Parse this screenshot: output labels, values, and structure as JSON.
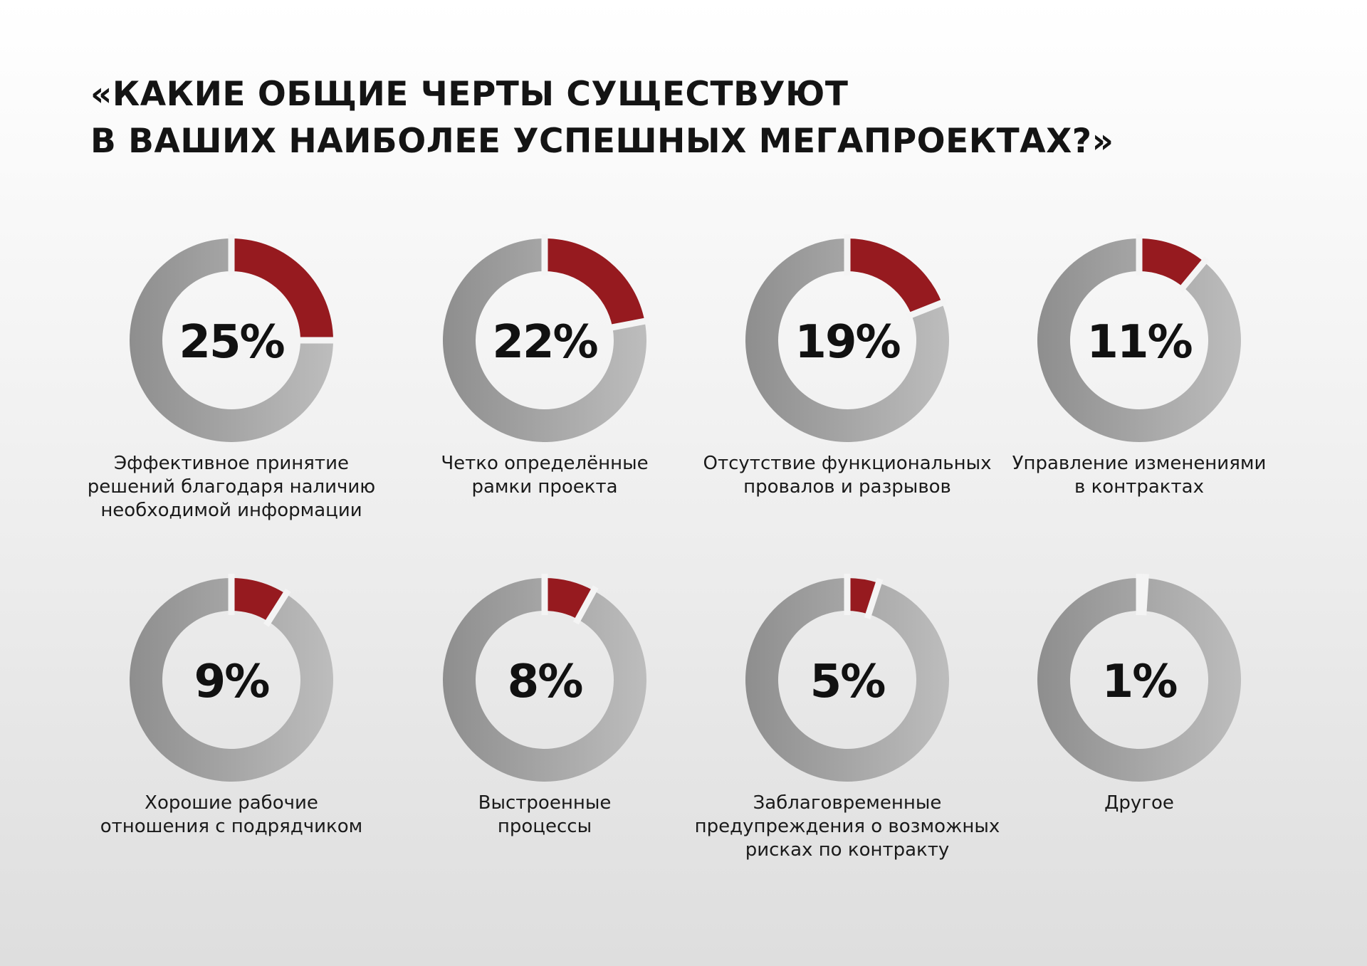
{
  "title": {
    "line1": "«КАКИЕ ОБЩИЕ ЧЕРТЫ СУЩЕСТВУЮТ",
    "line2": "В ВАШИХ НАИБОЛЕЕ УСПЕШНЫХ МЕГАПРОЕКТАХ?»"
  },
  "colors": {
    "accent": "#961a1f",
    "ring_light": "#bdbdbd",
    "ring_dark": "#8e8e8e",
    "text": "#111111"
  },
  "chart_data": {
    "type": "pie",
    "variant": "donut",
    "charts": [
      {
        "value": 25,
        "label": "25%",
        "caption": "Эффективное принятие\nрешений благодаря наличию\nнеобходимой информации"
      },
      {
        "value": 22,
        "label": "22%",
        "caption": "Четко определённые\nрамки проекта"
      },
      {
        "value": 19,
        "label": "19%",
        "caption": "Отсутствие функциональных\nпровалов и  разрывов"
      },
      {
        "value": 11,
        "label": "11%",
        "caption": "Управление изменениями\nв контрактах"
      },
      {
        "value": 9,
        "label": "9%",
        "caption": "Хорошие рабочие\nотношения с подрядчиком"
      },
      {
        "value": 8,
        "label": "8%",
        "caption": "Выстроенные\nпроцессы"
      },
      {
        "value": 5,
        "label": "5%",
        "caption": "Заблаговременные\nпредупреждения о возможных\nрисках по контракту"
      },
      {
        "value": 1,
        "label": "1%",
        "caption": "Другое"
      }
    ]
  }
}
